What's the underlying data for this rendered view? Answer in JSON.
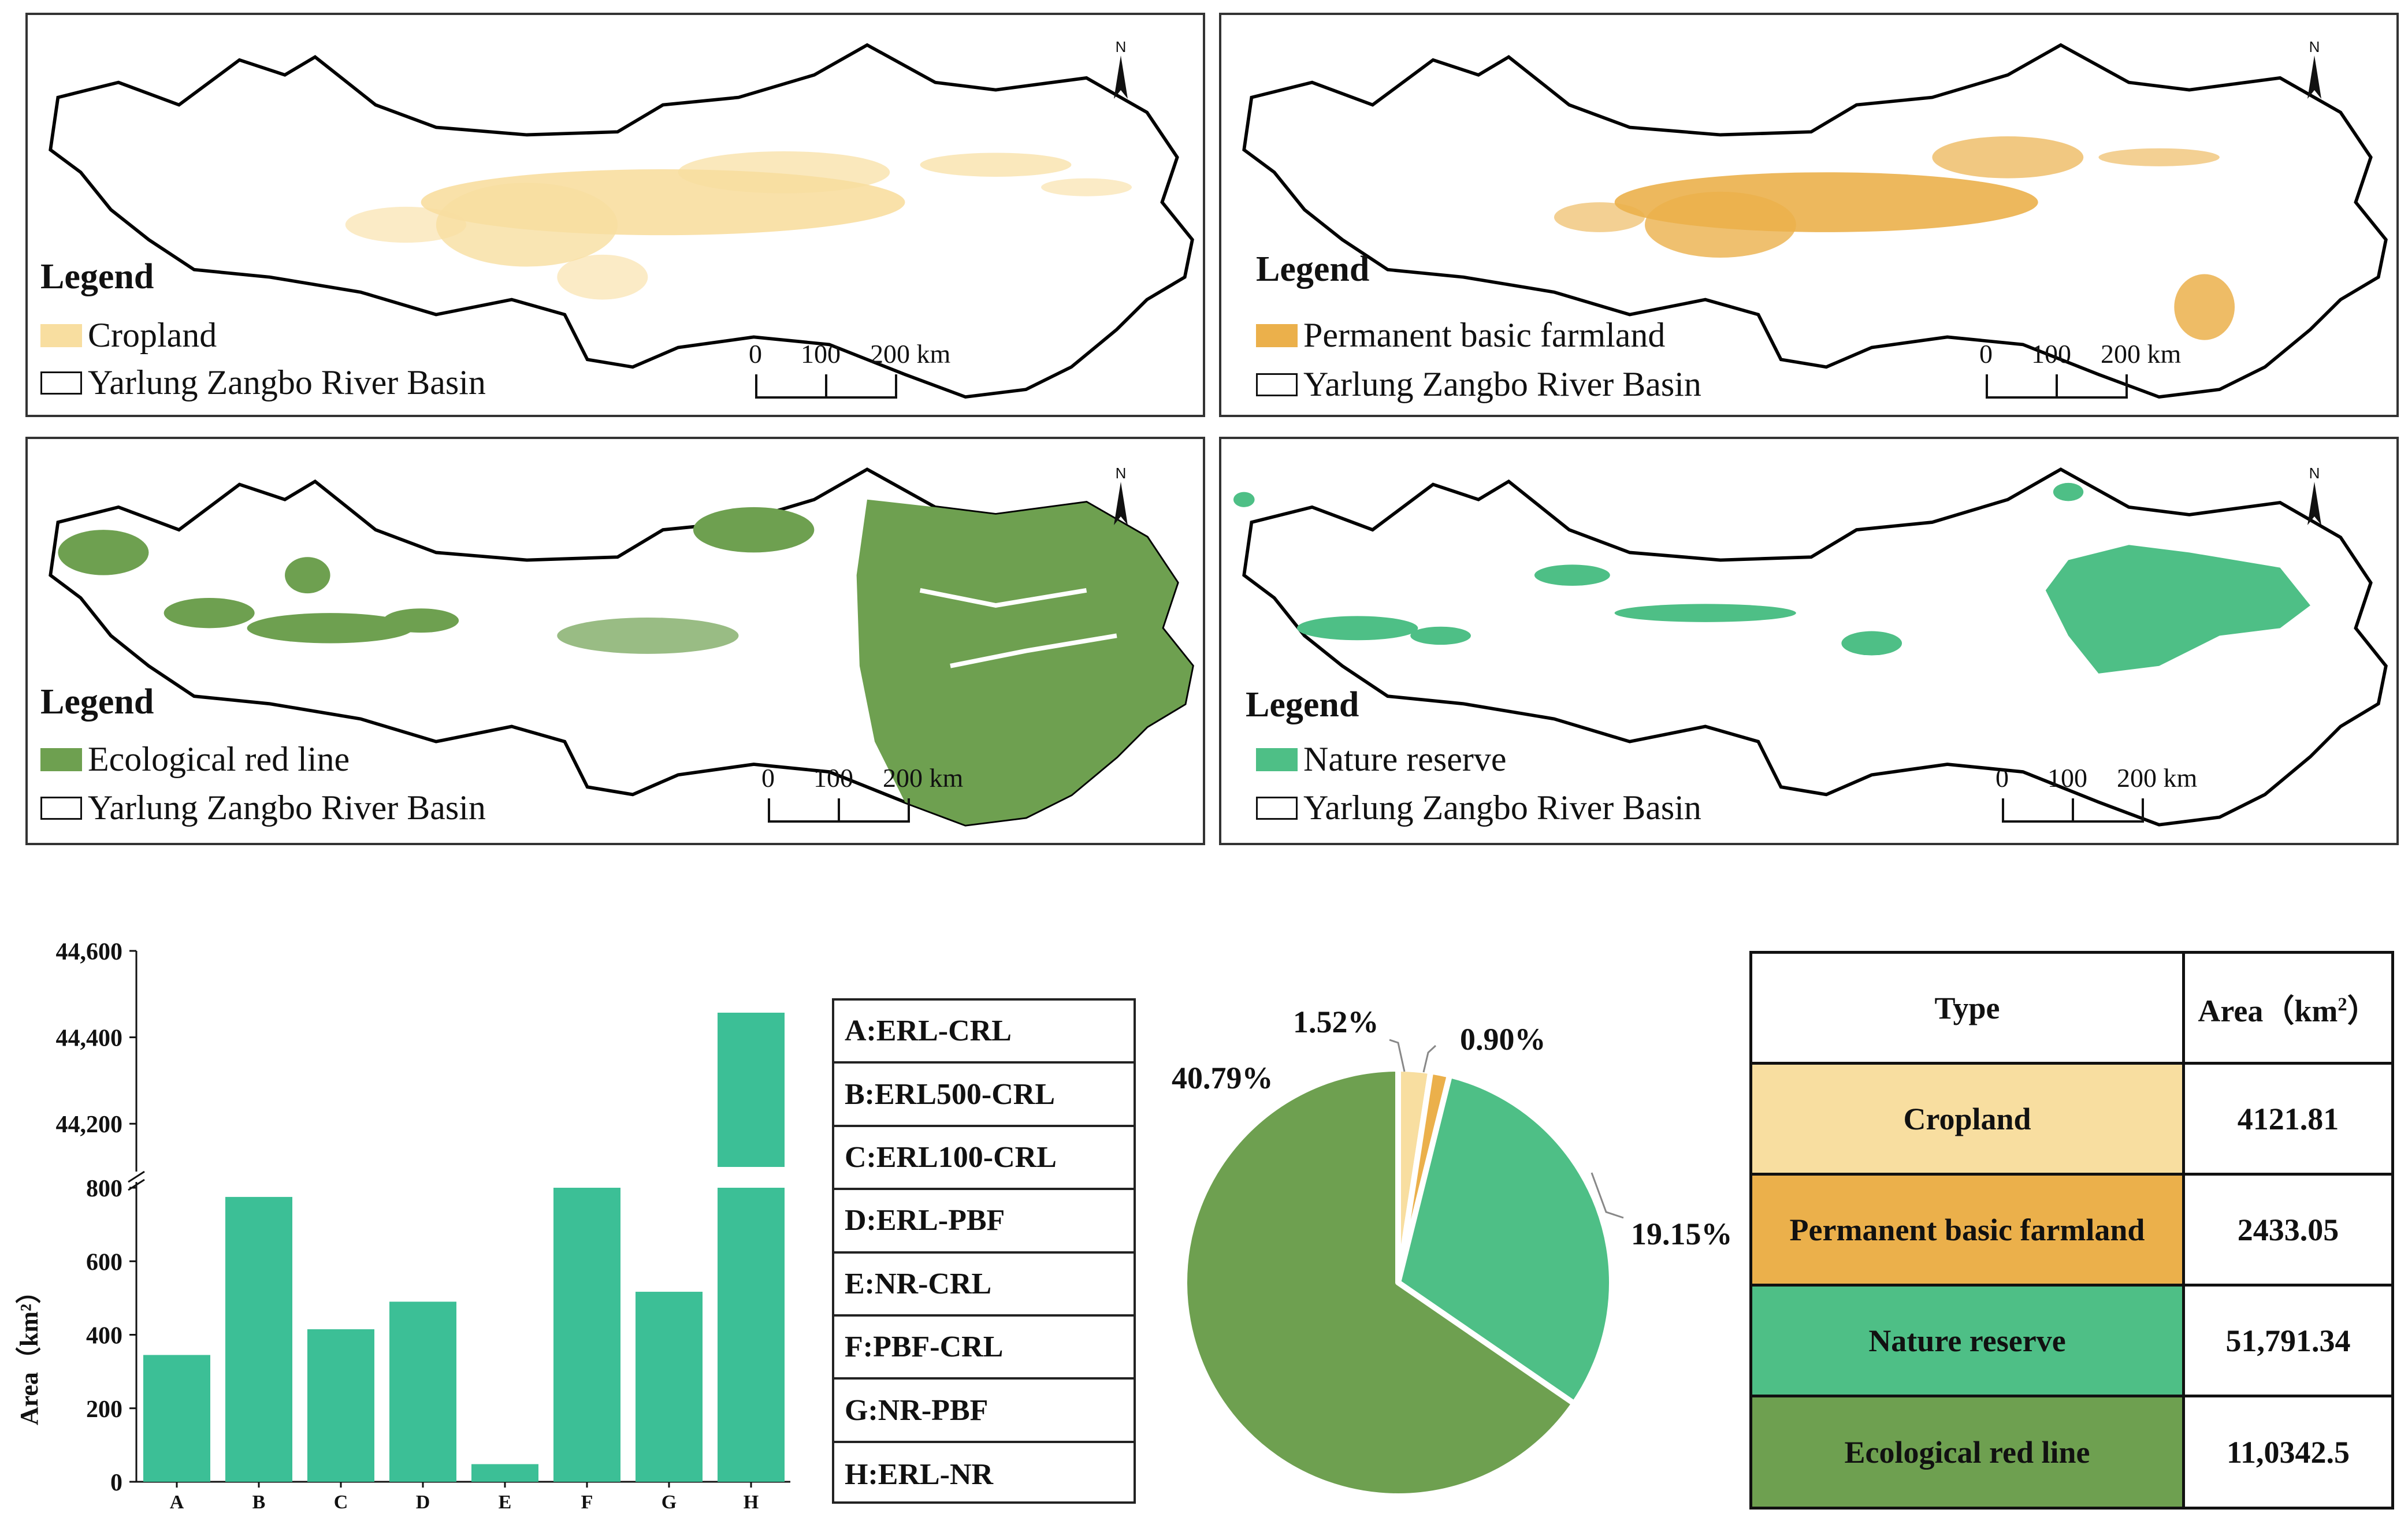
{
  "basin_label": "Yarlung Zangbo River Basin",
  "legend_title": "Legend",
  "north_label": "N",
  "scale_labels": {
    "zero": "0",
    "mid": "100",
    "end": "200 km"
  },
  "maps": [
    {
      "layer": "Cropland",
      "color": "#f8dea0"
    },
    {
      "layer": "Permanent basic farmland",
      "color": "#ebb04b"
    },
    {
      "layer": "Ecological red line",
      "color": "#6ea050"
    },
    {
      "layer": "Nature reserve",
      "color": "#4ebf86"
    }
  ],
  "colors": {
    "bar": "#3cbf96",
    "cropland": "#f8dea0",
    "farmland": "#ebb04b",
    "reserve": "#4ebf86",
    "redline": "#6ea050"
  },
  "bar_key": [
    "A:ERL-CRL",
    "B:ERL500-CRL",
    "C:ERL100-CRL",
    "D:ERL-PBF",
    "E:NR-CRL",
    "F:PBF-CRL",
    "G:NR-PBF",
    "H:ERL-NR"
  ],
  "chart_data": [
    {
      "type": "bar",
      "title": "",
      "xlabel": "",
      "ylabel": "Area（km²）",
      "categories": [
        "A",
        "B",
        "C",
        "D",
        "E",
        "F",
        "G",
        "H"
      ],
      "values": [
        345,
        775,
        415,
        490,
        48,
        812,
        517,
        44457
      ],
      "axis_break": {
        "lower_range": [
          0,
          800
        ],
        "upper_range": [
          44100,
          44600
        ]
      },
      "lower_ticks": [
        "0",
        "200",
        "400",
        "600",
        "800"
      ],
      "upper_ticks": [
        "44,200",
        "44,400",
        "44,600"
      ]
    },
    {
      "type": "pie",
      "labels": [
        "Cropland",
        "Permanent basic farmland",
        "Nature reserve",
        "Ecological red line"
      ],
      "values": [
        1.52,
        0.9,
        19.15,
        40.79
      ],
      "value_labels": [
        "1.52%",
        "0.90%",
        "19.15%",
        "40.79%"
      ]
    },
    {
      "type": "table",
      "header": [
        "Type",
        "Area（km",
        "2",
        "）"
      ],
      "rows": [
        {
          "type": "Cropland",
          "area": "4121.81"
        },
        {
          "type": "Permanent basic farmland",
          "area": "2433.05"
        },
        {
          "type": "Nature reserve",
          "area": "51,791.34"
        },
        {
          "type": "Ecological red line",
          "area": "11,0342.5"
        }
      ]
    }
  ]
}
